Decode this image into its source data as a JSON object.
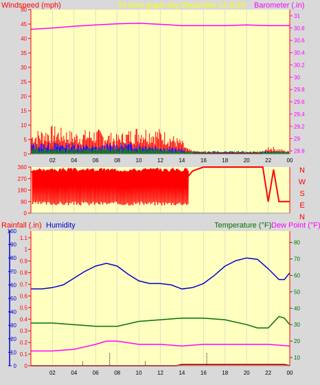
{
  "header": {
    "left_label": "Windspeed (mph)",
    "center_label": "24 hour graph day   December 14 2024",
    "right_label": "Barometer (.in)"
  },
  "labels": {
    "rainfall": "Rainfall (.in)",
    "humidity": "Humidity",
    "temperature": "Temperature (°F)",
    "dewpoint": "Dew Point (°F)"
  },
  "colors": {
    "panel_bg": "#ffffc0",
    "wind": "#ff0000",
    "wind_avg": "#0000ff",
    "wind_gust": "#008000",
    "barometer": "#ff00ff",
    "direction": "#ff0000",
    "humidity": "#0000cc",
    "temperature": "#007000",
    "dewpoint": "#ff00ff",
    "rain": "#cc0000",
    "axis": "#ff0000",
    "grid": "#cccccc"
  },
  "compass": [
    "N",
    "W",
    "S",
    "E",
    "N"
  ],
  "chart_data": [
    {
      "type": "line",
      "x_ticks": [
        "02",
        "04",
        "06",
        "08",
        "10",
        "12",
        "14",
        "16",
        "18",
        "20",
        "22",
        "00"
      ],
      "ylim_left": [
        0,
        50
      ],
      "yticks_left": [
        0,
        5,
        10,
        15,
        20,
        25,
        30,
        35,
        40,
        45,
        50
      ],
      "ylim_right": [
        28.75,
        31.1
      ],
      "yticks_right": [
        28.8,
        29,
        29.2,
        29.4,
        29.6,
        29.8,
        30,
        30.2,
        30.4,
        30.6,
        30.8,
        31
      ],
      "series": [
        {
          "name": "Barometer",
          "axis": "right",
          "x": [
            0,
            2,
            4,
            6,
            8,
            10,
            12,
            14,
            16,
            18,
            20,
            22,
            24
          ],
          "values": [
            30.78,
            30.8,
            30.83,
            30.85,
            30.87,
            30.88,
            30.86,
            30.84,
            30.84,
            30.84,
            30.85,
            30.84,
            30.84
          ]
        },
        {
          "axis": "left",
          "x": [
            0,
            2,
            4,
            6,
            8,
            10,
            12,
            14,
            14.5,
            16,
            18,
            20,
            21.5,
            22,
            23,
            24
          ],
          "values": [
            8,
            10,
            8,
            9,
            7,
            10,
            9,
            5,
            2,
            0,
            0,
            0,
            0,
            3,
            2,
            1
          ]
        },
        {
          "axis": "left",
          "x": [
            0,
            2,
            4,
            6,
            8,
            10,
            12,
            14,
            14.5
          ],
          "values": [
            4,
            4,
            4,
            3,
            4,
            4,
            3,
            2,
            1
          ]
        },
        {
          "axis": "left",
          "x": [
            0,
            2,
            4,
            6,
            8,
            10,
            12,
            14
          ],
          "values": [
            2,
            2,
            2,
            2,
            2,
            2,
            2,
            1
          ]
        }
      ]
    },
    {
      "type": "line",
      "ylim": [
        0,
        360
      ],
      "yticks": [
        0,
        90,
        180,
        270,
        360
      ],
      "series": [
        {
          "x": [
            0,
            1,
            3,
            5,
            7,
            9,
            11,
            13,
            14,
            14.5,
            15,
            16,
            21.5,
            22,
            22.5,
            23,
            24
          ],
          "values": [
            320,
            80,
            330,
            60,
            320,
            70,
            330,
            80,
            300,
            280,
            330,
            360,
            360,
            90,
            340,
            90,
            90
          ]
        }
      ]
    },
    {
      "type": "line",
      "ylim_left": [
        0,
        100
      ],
      "yticks_left_humidity": [
        0,
        10,
        20,
        30,
        40,
        50,
        60,
        70,
        80,
        90,
        100
      ],
      "yticks_left_rain": [
        0,
        0.1,
        0.2,
        0.3,
        0.4,
        0.5,
        0.6,
        0.7,
        0.8,
        0.9,
        1,
        1.1
      ],
      "ylim_right": [
        5,
        87
      ],
      "yticks_right": [
        10,
        20,
        30,
        40,
        50,
        60,
        70,
        80
      ],
      "series": [
        {
          "name": "Humidity",
          "axis": "left",
          "x": [
            0,
            1,
            2,
            3,
            4,
            5,
            6,
            7,
            8,
            9,
            10,
            11,
            12,
            13,
            14,
            15,
            16,
            17,
            18,
            19,
            20,
            21,
            22,
            23,
            23.5,
            24
          ],
          "values": [
            57,
            57,
            58,
            60,
            65,
            70,
            74,
            76,
            74,
            68,
            63,
            61,
            61,
            60,
            57,
            58,
            61,
            67,
            74,
            78,
            80,
            79,
            72,
            64,
            64,
            69
          ]
        },
        {
          "name": "Temperature",
          "axis": "right",
          "x": [
            0,
            2,
            4,
            6,
            8,
            10,
            12,
            14,
            16,
            18,
            20,
            21,
            22,
            23,
            23.5,
            24
          ],
          "values": [
            31,
            31,
            30,
            29,
            29,
            32,
            33,
            34,
            34,
            33,
            30,
            28,
            28,
            35,
            34,
            30
          ]
        },
        {
          "name": "Dew Point",
          "axis": "right",
          "x": [
            0,
            2,
            4,
            6,
            7,
            8,
            10,
            12,
            14,
            16,
            18,
            20,
            22,
            24
          ],
          "values": [
            14,
            14,
            15,
            18,
            20,
            20,
            18,
            18,
            17,
            18,
            18,
            18,
            18,
            17
          ]
        },
        {
          "name": "Rainfall",
          "axis": "left_rain",
          "x": [
            0,
            13.5,
            14,
            23.5,
            24
          ],
          "values": [
            0,
            0,
            0.01,
            0.01,
            0
          ]
        }
      ]
    }
  ]
}
